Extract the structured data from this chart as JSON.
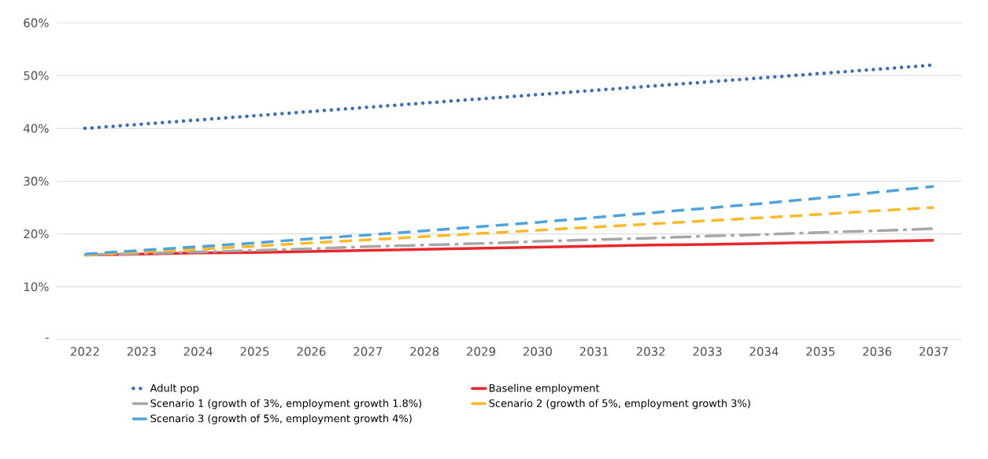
{
  "chart_data": {
    "type": "line",
    "categories": [
      "2022",
      "2023",
      "2024",
      "2025",
      "2026",
      "2027",
      "2028",
      "2029",
      "2030",
      "2031",
      "2032",
      "2033",
      "2034",
      "2035",
      "2036",
      "2037"
    ],
    "series": [
      {
        "name": "Adult pop",
        "color": "#3a6bbf",
        "line_style": "dotted",
        "values": [
          40,
          40.8,
          41.6,
          42.4,
          43.2,
          44,
          44.8,
          45.6,
          46.4,
          47.2,
          48,
          48.8,
          49.6,
          50.4,
          51.2,
          52
        ]
      },
      {
        "name": "Baseline employment",
        "color": "#e8262b",
        "line_style": "solid",
        "values": [
          16.0,
          16.2,
          16.4,
          16.5,
          16.7,
          16.9,
          17.1,
          17.3,
          17.5,
          17.7,
          17.9,
          18.0,
          18.2,
          18.4,
          18.6,
          18.8
        ]
      },
      {
        "name": "Scenario 1 (growth of 3%, employment growth 1.8%)",
        "color": "#a5a8a6",
        "line_style": "dashdot",
        "values": [
          16.0,
          16.3,
          16.6,
          16.9,
          17.2,
          17.6,
          17.9,
          18.2,
          18.6,
          18.9,
          19.2,
          19.6,
          19.9,
          20.3,
          20.6,
          21.0
        ]
      },
      {
        "name": "Scenario 2 (growth of 5%, employment growth 3%)",
        "color": "#fdb927",
        "line_style": "dashed",
        "values": [
          16.0,
          16.6,
          17.1,
          17.7,
          18.3,
          18.9,
          19.5,
          20.1,
          20.7,
          21.3,
          21.9,
          22.5,
          23.1,
          23.7,
          24.4,
          25.0
        ]
      },
      {
        "name": "Scenario 3 (growth of 5%, employment growth 4%)",
        "color": "#4fa3dc",
        "line_style": "dashed",
        "values": [
          16.2,
          16.9,
          17.6,
          18.3,
          19.1,
          19.8,
          20.6,
          21.4,
          22.2,
          23.1,
          24.0,
          24.9,
          25.8,
          26.8,
          27.9,
          29.0
        ]
      }
    ],
    "ylim": [
      0,
      60
    ],
    "yticks": [
      {
        "value": 0,
        "label": "-"
      },
      {
        "value": 10,
        "label": "10%"
      },
      {
        "value": 20,
        "label": "20%"
      },
      {
        "value": 30,
        "label": "30%"
      },
      {
        "value": 40,
        "label": "40%"
      },
      {
        "value": 50,
        "label": "50%"
      },
      {
        "value": 60,
        "label": "60%"
      }
    ],
    "grid": "y",
    "legend": "bottom",
    "marker": "none"
  }
}
